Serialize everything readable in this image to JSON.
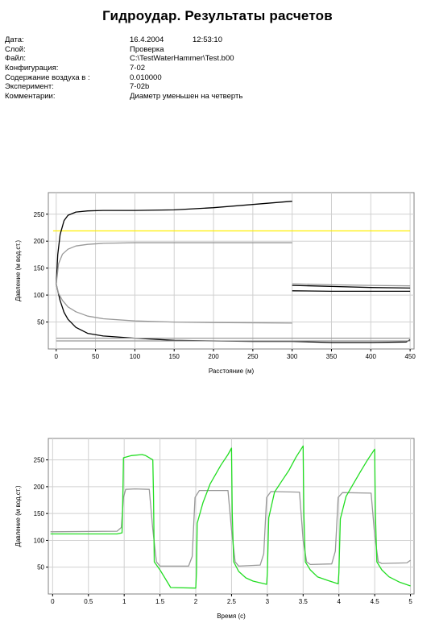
{
  "report": {
    "title": "Гидроудар. Результаты расчетов",
    "meta": [
      {
        "key": "Дата:",
        "value": "16.4.2004",
        "value2": "12:53:10"
      },
      {
        "key": "Слой:",
        "value": "Проверка"
      },
      {
        "key": "Файл:",
        "value": "C:\\TestWaterHammer\\Test.b00"
      },
      {
        "key": "Конфигурация:",
        "value": "7-02"
      },
      {
        "key": "Содержание воздуха в :",
        "value": "0.010000"
      },
      {
        "key": "Эксперимент:",
        "value": "7-02b"
      },
      {
        "key": "Комментарии:",
        "value": "Диаметр уменьшен на четверть"
      }
    ]
  },
  "chart_data": [
    {
      "type": "line",
      "xlabel": "Расстояние (м)",
      "ylabel": "Давление (м вод.ст.)",
      "xlim": [
        -10,
        455
      ],
      "ylim": [
        0,
        290
      ],
      "xticks": [
        0,
        50,
        100,
        150,
        200,
        250,
        300,
        350,
        400,
        450
      ],
      "yticks": [
        50,
        100,
        150,
        200,
        250
      ],
      "grid": true,
      "series": [
        {
          "color": "#ffee00",
          "points": [
            [
              -4,
              219
            ],
            [
              450,
              219
            ]
          ]
        },
        {
          "color": "#000000",
          "points": [
            [
              0,
              120
            ],
            [
              2,
              175
            ],
            [
              5,
              212
            ],
            [
              10,
              238
            ],
            [
              15,
              248
            ],
            [
              25,
              254
            ],
            [
              40,
              256
            ],
            [
              60,
              257
            ],
            [
              100,
              257
            ],
            [
              150,
              258
            ],
            [
              200,
              262
            ],
            [
              250,
              268
            ],
            [
              300,
              274
            ]
          ]
        },
        {
          "color": "#000000",
          "points": [
            [
              300,
              118
            ],
            [
              350,
              116
            ],
            [
              400,
              114
            ],
            [
              450,
              113
            ]
          ]
        },
        {
          "color": "#000000",
          "points": [
            [
              300,
              108
            ],
            [
              350,
              107
            ],
            [
              400,
              107
            ],
            [
              450,
              107
            ]
          ]
        },
        {
          "color": "#000000",
          "points": [
            [
              0,
              120
            ],
            [
              5,
              90
            ],
            [
              10,
              68
            ],
            [
              15,
              55
            ],
            [
              25,
              40
            ],
            [
              40,
              29
            ],
            [
              60,
              24
            ],
            [
              100,
              20
            ],
            [
              150,
              16
            ],
            [
              200,
              15
            ],
            [
              250,
              14
            ],
            [
              300,
              14
            ],
            [
              350,
              12
            ],
            [
              400,
              12
            ],
            [
              445,
              13
            ],
            [
              450,
              17
            ]
          ]
        },
        {
          "color": "#999999",
          "points": [
            [
              0,
              120
            ],
            [
              3,
              158
            ],
            [
              8,
              176
            ],
            [
              15,
              185
            ],
            [
              25,
              191
            ],
            [
              40,
              194
            ],
            [
              60,
              196
            ],
            [
              100,
              197
            ],
            [
              200,
              197
            ],
            [
              300,
              197
            ]
          ]
        },
        {
          "color": "#999999",
          "points": [
            [
              0,
              120
            ],
            [
              3,
              103
            ],
            [
              8,
              90
            ],
            [
              15,
              78
            ],
            [
              25,
              69
            ],
            [
              40,
              61
            ],
            [
              60,
              56
            ],
            [
              100,
              52
            ],
            [
              150,
              50
            ],
            [
              200,
              49
            ],
            [
              300,
              48
            ]
          ]
        },
        {
          "color": "#999999",
          "points": [
            [
              300,
              121
            ],
            [
              350,
              119
            ],
            [
              400,
              118
            ],
            [
              450,
              117
            ]
          ]
        },
        {
          "color": "#999999",
          "points": [
            [
              0,
              20
            ],
            [
              450,
              20
            ]
          ]
        },
        {
          "color": "#999999",
          "points": [
            [
              0,
              15
            ],
            [
              450,
              15
            ]
          ]
        }
      ]
    },
    {
      "type": "line",
      "xlabel": "Время (с)",
      "ylabel": "Давление (м вод.ст.)",
      "xlim": [
        -0.06,
        5.05
      ],
      "ylim": [
        0,
        290
      ],
      "xticks": [
        0,
        0.5,
        1,
        1.5,
        2,
        2.5,
        3,
        3.5,
        4,
        4.5,
        5
      ],
      "yticks": [
        50,
        100,
        150,
        200,
        250
      ],
      "grid": true,
      "series": [
        {
          "color": "#999999",
          "points": [
            [
              -0.03,
              116
            ],
            [
              0.9,
              117
            ],
            [
              0.96,
              124
            ],
            [
              0.99,
              180
            ],
            [
              1.02,
              195
            ],
            [
              1.15,
              196
            ],
            [
              1.35,
              195
            ],
            [
              1.4,
              120
            ],
            [
              1.45,
              60
            ],
            [
              1.5,
              52
            ],
            [
              1.9,
              52
            ],
            [
              1.95,
              70
            ],
            [
              1.99,
              180
            ],
            [
              2.05,
              193
            ],
            [
              2.45,
              193
            ],
            [
              2.5,
              120
            ],
            [
              2.55,
              60
            ],
            [
              2.6,
              52
            ],
            [
              2.9,
              54
            ],
            [
              2.95,
              75
            ],
            [
              2.99,
              180
            ],
            [
              3.05,
              191
            ],
            [
              3.45,
              190
            ],
            [
              3.5,
              100
            ],
            [
              3.55,
              60
            ],
            [
              3.6,
              55
            ],
            [
              3.9,
              56
            ],
            [
              3.95,
              80
            ],
            [
              3.99,
              180
            ],
            [
              4.05,
              189
            ],
            [
              4.45,
              188
            ],
            [
              4.5,
              110
            ],
            [
              4.55,
              60
            ],
            [
              4.6,
              57
            ],
            [
              4.95,
              58
            ],
            [
              5.0,
              63
            ]
          ]
        },
        {
          "color": "#22dd22",
          "points": [
            [
              -0.03,
              112
            ],
            [
              0.9,
              112
            ],
            [
              0.97,
              114
            ],
            [
              0.98,
              175
            ],
            [
              0.99,
              254
            ],
            [
              1.1,
              258
            ],
            [
              1.25,
              260
            ],
            [
              1.3,
              258
            ],
            [
              1.4,
              250
            ],
            [
              1.41,
              180
            ],
            [
              1.42,
              60
            ],
            [
              1.5,
              45
            ],
            [
              1.65,
              12
            ],
            [
              2.0,
              11
            ],
            [
              2.01,
              40
            ],
            [
              2.02,
              132
            ],
            [
              2.1,
              170
            ],
            [
              2.2,
              205
            ],
            [
              2.35,
              240
            ],
            [
              2.45,
              260
            ],
            [
              2.5,
              272
            ],
            [
              2.51,
              150
            ],
            [
              2.53,
              60
            ],
            [
              2.6,
              42
            ],
            [
              2.7,
              30
            ],
            [
              2.8,
              24
            ],
            [
              2.99,
              18
            ],
            [
              3.0,
              40
            ],
            [
              3.02,
              142
            ],
            [
              3.1,
              190
            ],
            [
              3.2,
              210
            ],
            [
              3.3,
              230
            ],
            [
              3.4,
              255
            ],
            [
              3.5,
              276
            ],
            [
              3.51,
              150
            ],
            [
              3.53,
              60
            ],
            [
              3.6,
              45
            ],
            [
              3.7,
              32
            ],
            [
              3.85,
              25
            ],
            [
              3.99,
              19
            ],
            [
              4.0,
              40
            ],
            [
              4.02,
              140
            ],
            [
              4.1,
              182
            ],
            [
              4.2,
              205
            ],
            [
              4.3,
              228
            ],
            [
              4.4,
              250
            ],
            [
              4.5,
              270
            ],
            [
              4.51,
              150
            ],
            [
              4.53,
              60
            ],
            [
              4.6,
              45
            ],
            [
              4.7,
              32
            ],
            [
              4.85,
              22
            ],
            [
              5.0,
              15
            ]
          ]
        }
      ]
    }
  ]
}
